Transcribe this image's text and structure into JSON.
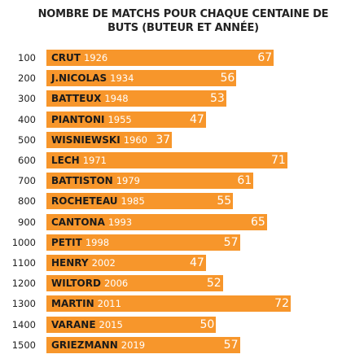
{
  "chart_data": {
    "type": "bar",
    "orientation": "horizontal",
    "title_lines": [
      "NOMBRE DE MATCHS POUR CHAQUE CENTAINE DE",
      "BUTS (BUTEUR ET ANNÉE)"
    ],
    "categories": [
      "100",
      "200",
      "300",
      "400",
      "500",
      "600",
      "700",
      "800",
      "900",
      "1000",
      "1100",
      "1200",
      "1300",
      "1400",
      "1500"
    ],
    "scorers": [
      "CRUT",
      "J.NICOLAS",
      "BATTEUX",
      "PIANTONI",
      "WISNIEWSKI",
      "LECH",
      "BATTISTON",
      "ROCHETEAU",
      "CANTONA",
      "PETIT",
      "HENRY",
      "WILTORD",
      "MARTIN",
      "VARANE",
      "GRIEZMANN"
    ],
    "years": [
      "1926",
      "1934",
      "1948",
      "1955",
      "1960",
      "1971",
      "1979",
      "1985",
      "1993",
      "1998",
      "2002",
      "2006",
      "2011",
      "2015",
      "2019"
    ],
    "values": [
      67,
      56,
      53,
      47,
      37,
      71,
      61,
      55,
      65,
      57,
      47,
      52,
      72,
      50,
      57
    ],
    "xlim": [
      0,
      72
    ],
    "grid": false,
    "bar_color": "#f7962b",
    "value_label_color": "#ffffff"
  }
}
